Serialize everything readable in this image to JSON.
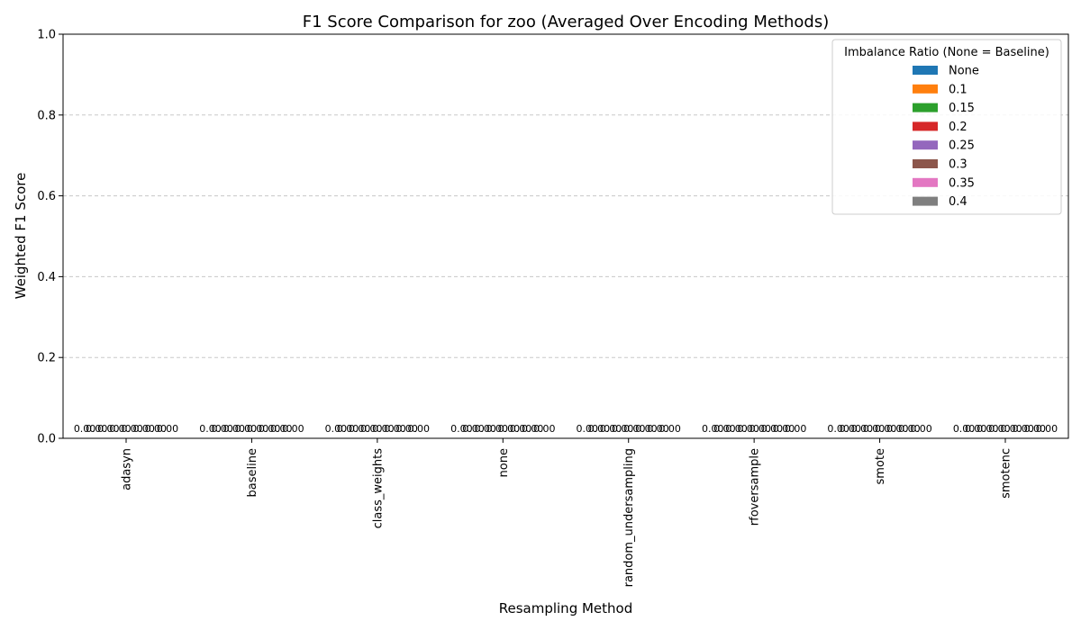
{
  "chart_data": {
    "type": "bar",
    "title": "F1 Score Comparison for zoo (Averaged Over Encoding Methods)",
    "xlabel": "Resampling Method",
    "ylabel": "Weighted F1 Score",
    "ylim": [
      0,
      1
    ],
    "yticks": [
      "0.0",
      "0.2",
      "0.4",
      "0.6",
      "0.8",
      "1.0"
    ],
    "grid": "y-dashed",
    "categories": [
      "adasyn",
      "baseline",
      "class_weights",
      "none",
      "random_undersampling",
      "rfoversample",
      "smote",
      "smotenc"
    ],
    "legend": {
      "title": "Imbalance Ratio (None = Baseline)",
      "placement": "upper-right"
    },
    "series": [
      {
        "name": "None",
        "color": "#1f77b4",
        "values": [
          0,
          0,
          0,
          0,
          0,
          0,
          0,
          0
        ],
        "labels": [
          "0.00",
          "0.00",
          "0.00",
          "0.00",
          "0.00",
          "0.00",
          "0.00",
          "0.00"
        ]
      },
      {
        "name": "0.1",
        "color": "#ff7f0e",
        "values": [
          0,
          0,
          0,
          0,
          0,
          0,
          0,
          0
        ],
        "labels": [
          "0.00",
          "0.00",
          "0.00",
          "0.00",
          "0.00",
          "0.00",
          "0.00",
          "0.00"
        ]
      },
      {
        "name": "0.15",
        "color": "#2ca02c",
        "values": [
          0,
          0,
          0,
          0,
          0,
          0,
          0,
          0
        ],
        "labels": [
          "0.00",
          "0.00",
          "0.00",
          "0.00",
          "0.00",
          "0.00",
          "0.00",
          "0.00"
        ]
      },
      {
        "name": "0.2",
        "color": "#d62728",
        "values": [
          0,
          0,
          0,
          0,
          0,
          0,
          0,
          0
        ],
        "labels": [
          "0.00",
          "0.00",
          "0.00",
          "0.00",
          "0.00",
          "0.00",
          "0.00",
          "0.00"
        ]
      },
      {
        "name": "0.25",
        "color": "#9467bd",
        "values": [
          0,
          0,
          0,
          0,
          0,
          0,
          0,
          0
        ],
        "labels": [
          "0.00",
          "0.00",
          "0.00",
          "0.00",
          "0.00",
          "0.00",
          "0.00",
          "0.00"
        ]
      },
      {
        "name": "0.3",
        "color": "#8c564b",
        "values": [
          0,
          0,
          0,
          0,
          0,
          0,
          0,
          0
        ],
        "labels": [
          "0.00",
          "0.00",
          "0.00",
          "0.00",
          "0.00",
          "0.00",
          "0.00",
          "0.00"
        ]
      },
      {
        "name": "0.35",
        "color": "#e377c2",
        "values": [
          0,
          0,
          0,
          0,
          0,
          0,
          0,
          0
        ],
        "labels": [
          "0.00",
          "0.00",
          "0.00",
          "0.00",
          "0.00",
          "0.00",
          "0.00",
          "0.00"
        ]
      },
      {
        "name": "0.4",
        "color": "#7f7f7f",
        "values": [
          0,
          0,
          0,
          0,
          0,
          0,
          0,
          0
        ],
        "labels": [
          "0.00",
          "0.00",
          "0.00",
          "0.00",
          "0.00",
          "0.00",
          "0.00",
          "0.00"
        ]
      }
    ]
  }
}
